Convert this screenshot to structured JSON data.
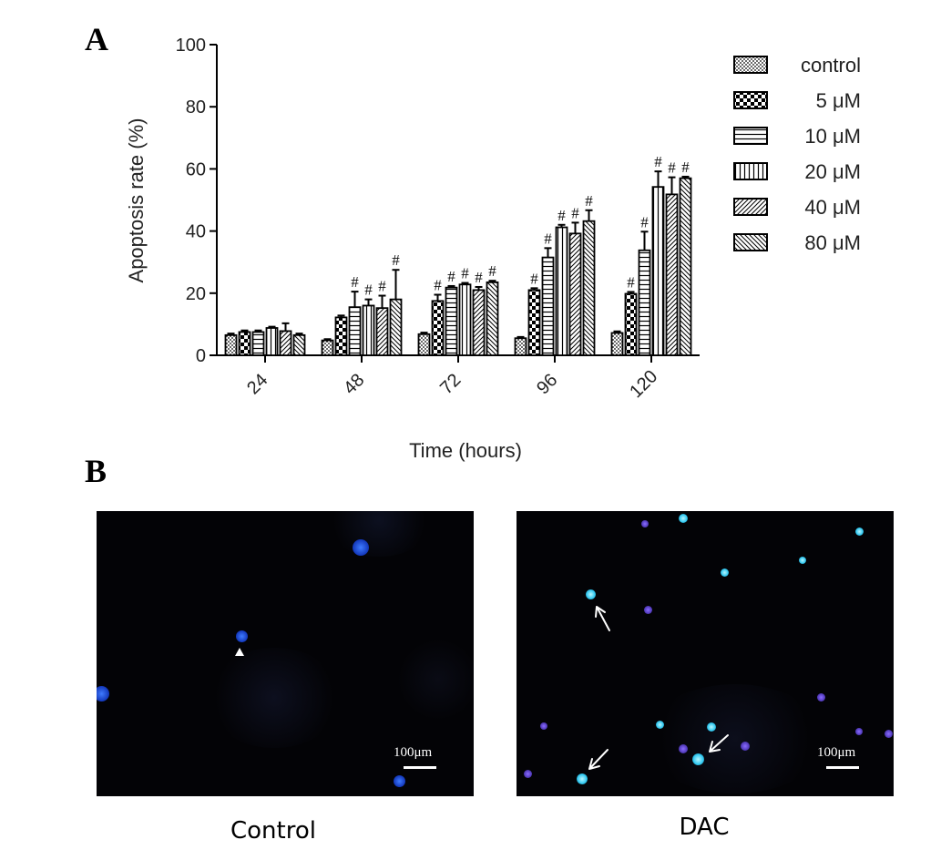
{
  "panel_a_label": "A",
  "panel_b_label": "B",
  "chart_data": {
    "type": "bar",
    "title": "",
    "xlabel": "Time (hours)",
    "ylabel": "Apoptosis rate (%)",
    "ylim": [
      0,
      100
    ],
    "yticks": [
      0,
      20,
      40,
      60,
      80,
      100
    ],
    "categories": [
      "24",
      "48",
      "72",
      "96",
      "120"
    ],
    "legend_position": "right",
    "significance_marker": "#",
    "series": [
      {
        "name": "control",
        "pattern": "dots",
        "values": [
          6.5,
          4.8,
          6.8,
          5.5,
          7.2
        ],
        "errors": [
          0.5,
          0.4,
          0.5,
          0.4,
          0.5
        ],
        "significant": [
          false,
          false,
          false,
          false,
          false
        ]
      },
      {
        "name": "5 μM",
        "pattern": "checker",
        "values": [
          7.5,
          12.2,
          17.5,
          21.0,
          19.8
        ],
        "errors": [
          0.5,
          0.6,
          2.0,
          0.6,
          0.6
        ],
        "significant": [
          false,
          false,
          true,
          true,
          true
        ]
      },
      {
        "name": "10 μM",
        "pattern": "horizontal",
        "values": [
          7.5,
          15.5,
          21.8,
          31.5,
          33.8
        ],
        "errors": [
          0.5,
          5.0,
          0.5,
          3.0,
          6.0
        ],
        "significant": [
          false,
          true,
          true,
          true,
          true
        ]
      },
      {
        "name": "20 μM",
        "pattern": "vertical",
        "values": [
          8.8,
          16.0,
          22.8,
          41.2,
          54.2
        ],
        "errors": [
          0.4,
          2.0,
          0.5,
          0.8,
          5.0
        ],
        "significant": [
          false,
          true,
          true,
          true,
          true
        ]
      },
      {
        "name": "40 μM",
        "pattern": "diag-up",
        "values": [
          7.8,
          15.2,
          21.0,
          39.2,
          51.8
        ],
        "errors": [
          2.5,
          4.0,
          1.0,
          3.5,
          5.5
        ],
        "significant": [
          false,
          true,
          true,
          true,
          true
        ]
      },
      {
        "name": "80 μM",
        "pattern": "diag-down",
        "values": [
          6.5,
          18.0,
          23.5,
          43.2,
          57.0
        ],
        "errors": [
          0.5,
          9.5,
          0.5,
          3.5,
          0.5
        ],
        "significant": [
          false,
          true,
          true,
          true,
          true
        ]
      }
    ]
  },
  "micrographs": {
    "control": {
      "caption": "Control",
      "scale_label": "100μm"
    },
    "dac": {
      "caption": "DAC",
      "scale_label": "100μm"
    }
  },
  "colors": {
    "background": "#030306",
    "nucleus_blue": "#1a4fd8",
    "apoptotic_cyan": "#5fe0ff",
    "violet": "#6a4fd8"
  }
}
